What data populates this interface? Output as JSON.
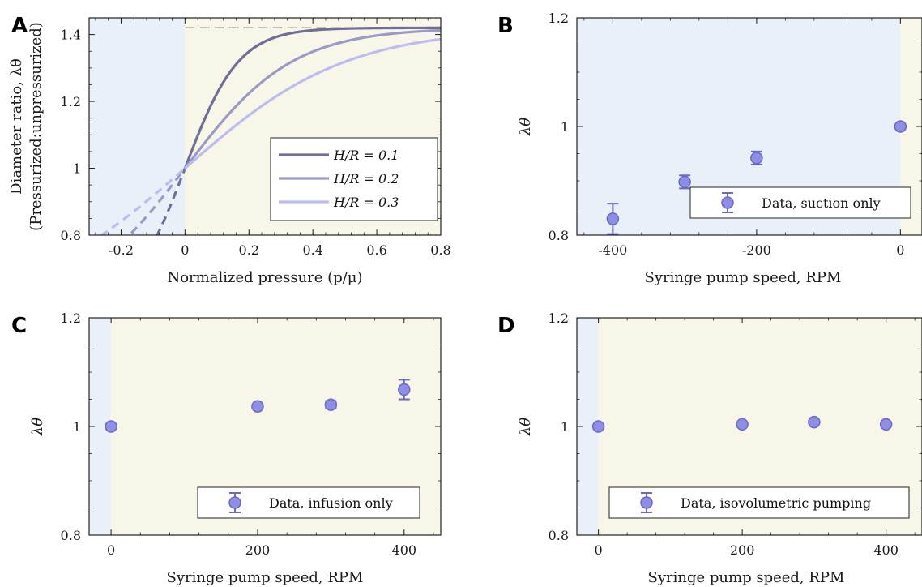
{
  "colors": {
    "suction_region": "#e9f0f8",
    "infusion_region": "#f7f6e8",
    "curve_h01": "#6e6e96",
    "curve_h02": "#9a9ac6",
    "curve_h03": "#bcbcf0",
    "marker_fill": "#8e8ee6",
    "marker_edge": "#6a6ac4",
    "asymptote": "#333333"
  },
  "chart_data": [
    {
      "panel": "A",
      "type": "line",
      "xlabel": "Normalized pressure (p/μ)",
      "ylabel_line1": "Diameter ratio, λθ",
      "ylabel_line2": "(Pressurized:unpressurized)",
      "xlim": [
        -0.3,
        0.8
      ],
      "ylim": [
        0.8,
        1.45
      ],
      "x_ticks": [
        -0.2,
        0,
        0.2,
        0.4,
        0.6,
        0.8
      ],
      "x_tick_labels": [
        "-0.2",
        "0",
        "0.2",
        "0.4",
        "0.6",
        "0.8"
      ],
      "y_ticks": [
        0.8,
        1.0,
        1.2,
        1.4
      ],
      "y_tick_labels": [
        "0.8",
        "1",
        "1.2",
        "1.4"
      ],
      "asymptote_y": 1.42,
      "legend_position": "bottom-right",
      "series": [
        {
          "name": "H/R = 0.1",
          "hr": 0.1,
          "color_key": "curve_h01"
        },
        {
          "name": "H/R = 0.2",
          "hr": 0.2,
          "color_key": "curve_h02"
        },
        {
          "name": "H/R = 0.3",
          "hr": 0.3,
          "color_key": "curve_h03"
        }
      ]
    },
    {
      "panel": "B",
      "type": "scatter",
      "xlabel": "Syringe pump speed, RPM",
      "ylabel": "λθ",
      "xlim": [
        -450,
        30
      ],
      "ylim": [
        0.8,
        1.2
      ],
      "x_ticks": [
        -400,
        -200,
        0
      ],
      "x_tick_labels": [
        "-400",
        "-200",
        "0"
      ],
      "y_ticks": [
        0.8,
        1.0,
        1.2
      ],
      "y_tick_labels": [
        "0.8",
        "1",
        "1.2"
      ],
      "region_split_x": 0,
      "legend": "Data, suction only",
      "legend_position": "bottom-right",
      "x": [
        -400,
        -300,
        -200,
        0
      ],
      "y": [
        0.83,
        0.898,
        0.942,
        1.0
      ],
      "err": [
        0.028,
        0.012,
        0.012,
        0.0
      ]
    },
    {
      "panel": "C",
      "type": "scatter",
      "xlabel": "Syringe pump speed, RPM",
      "ylabel": "λθ",
      "xlim": [
        -30,
        450
      ],
      "ylim": [
        0.8,
        1.2
      ],
      "x_ticks": [
        0,
        200,
        400
      ],
      "x_tick_labels": [
        "0",
        "200",
        "400"
      ],
      "y_ticks": [
        0.8,
        1.0,
        1.2
      ],
      "y_tick_labels": [
        "0.8",
        "1",
        "1.2"
      ],
      "region_split_x": 0,
      "legend": "Data, infusion only",
      "legend_position": "bottom-right",
      "x": [
        0,
        200,
        300,
        400
      ],
      "y": [
        1.0,
        1.037,
        1.04,
        1.068
      ],
      "err": [
        0.0,
        0.004,
        0.007,
        0.018
      ]
    },
    {
      "panel": "D",
      "type": "scatter",
      "xlabel": "Syringe pump speed, RPM",
      "ylabel": "λθ",
      "xlim": [
        -30,
        450
      ],
      "ylim": [
        0.8,
        1.2
      ],
      "x_ticks": [
        0,
        200,
        400
      ],
      "x_tick_labels": [
        "0",
        "200",
        "400"
      ],
      "y_ticks": [
        0.8,
        1.0,
        1.2
      ],
      "y_tick_labels": [
        "0.8",
        "1",
        "1.2"
      ],
      "region_split_x": 0,
      "legend": "Data, isovolumetric pumping",
      "legend_position": "bottom-right",
      "x": [
        0,
        200,
        300,
        400
      ],
      "y": [
        1.0,
        1.004,
        1.008,
        1.004
      ],
      "err": [
        0.0,
        0.0,
        0.0,
        0.0
      ]
    }
  ]
}
